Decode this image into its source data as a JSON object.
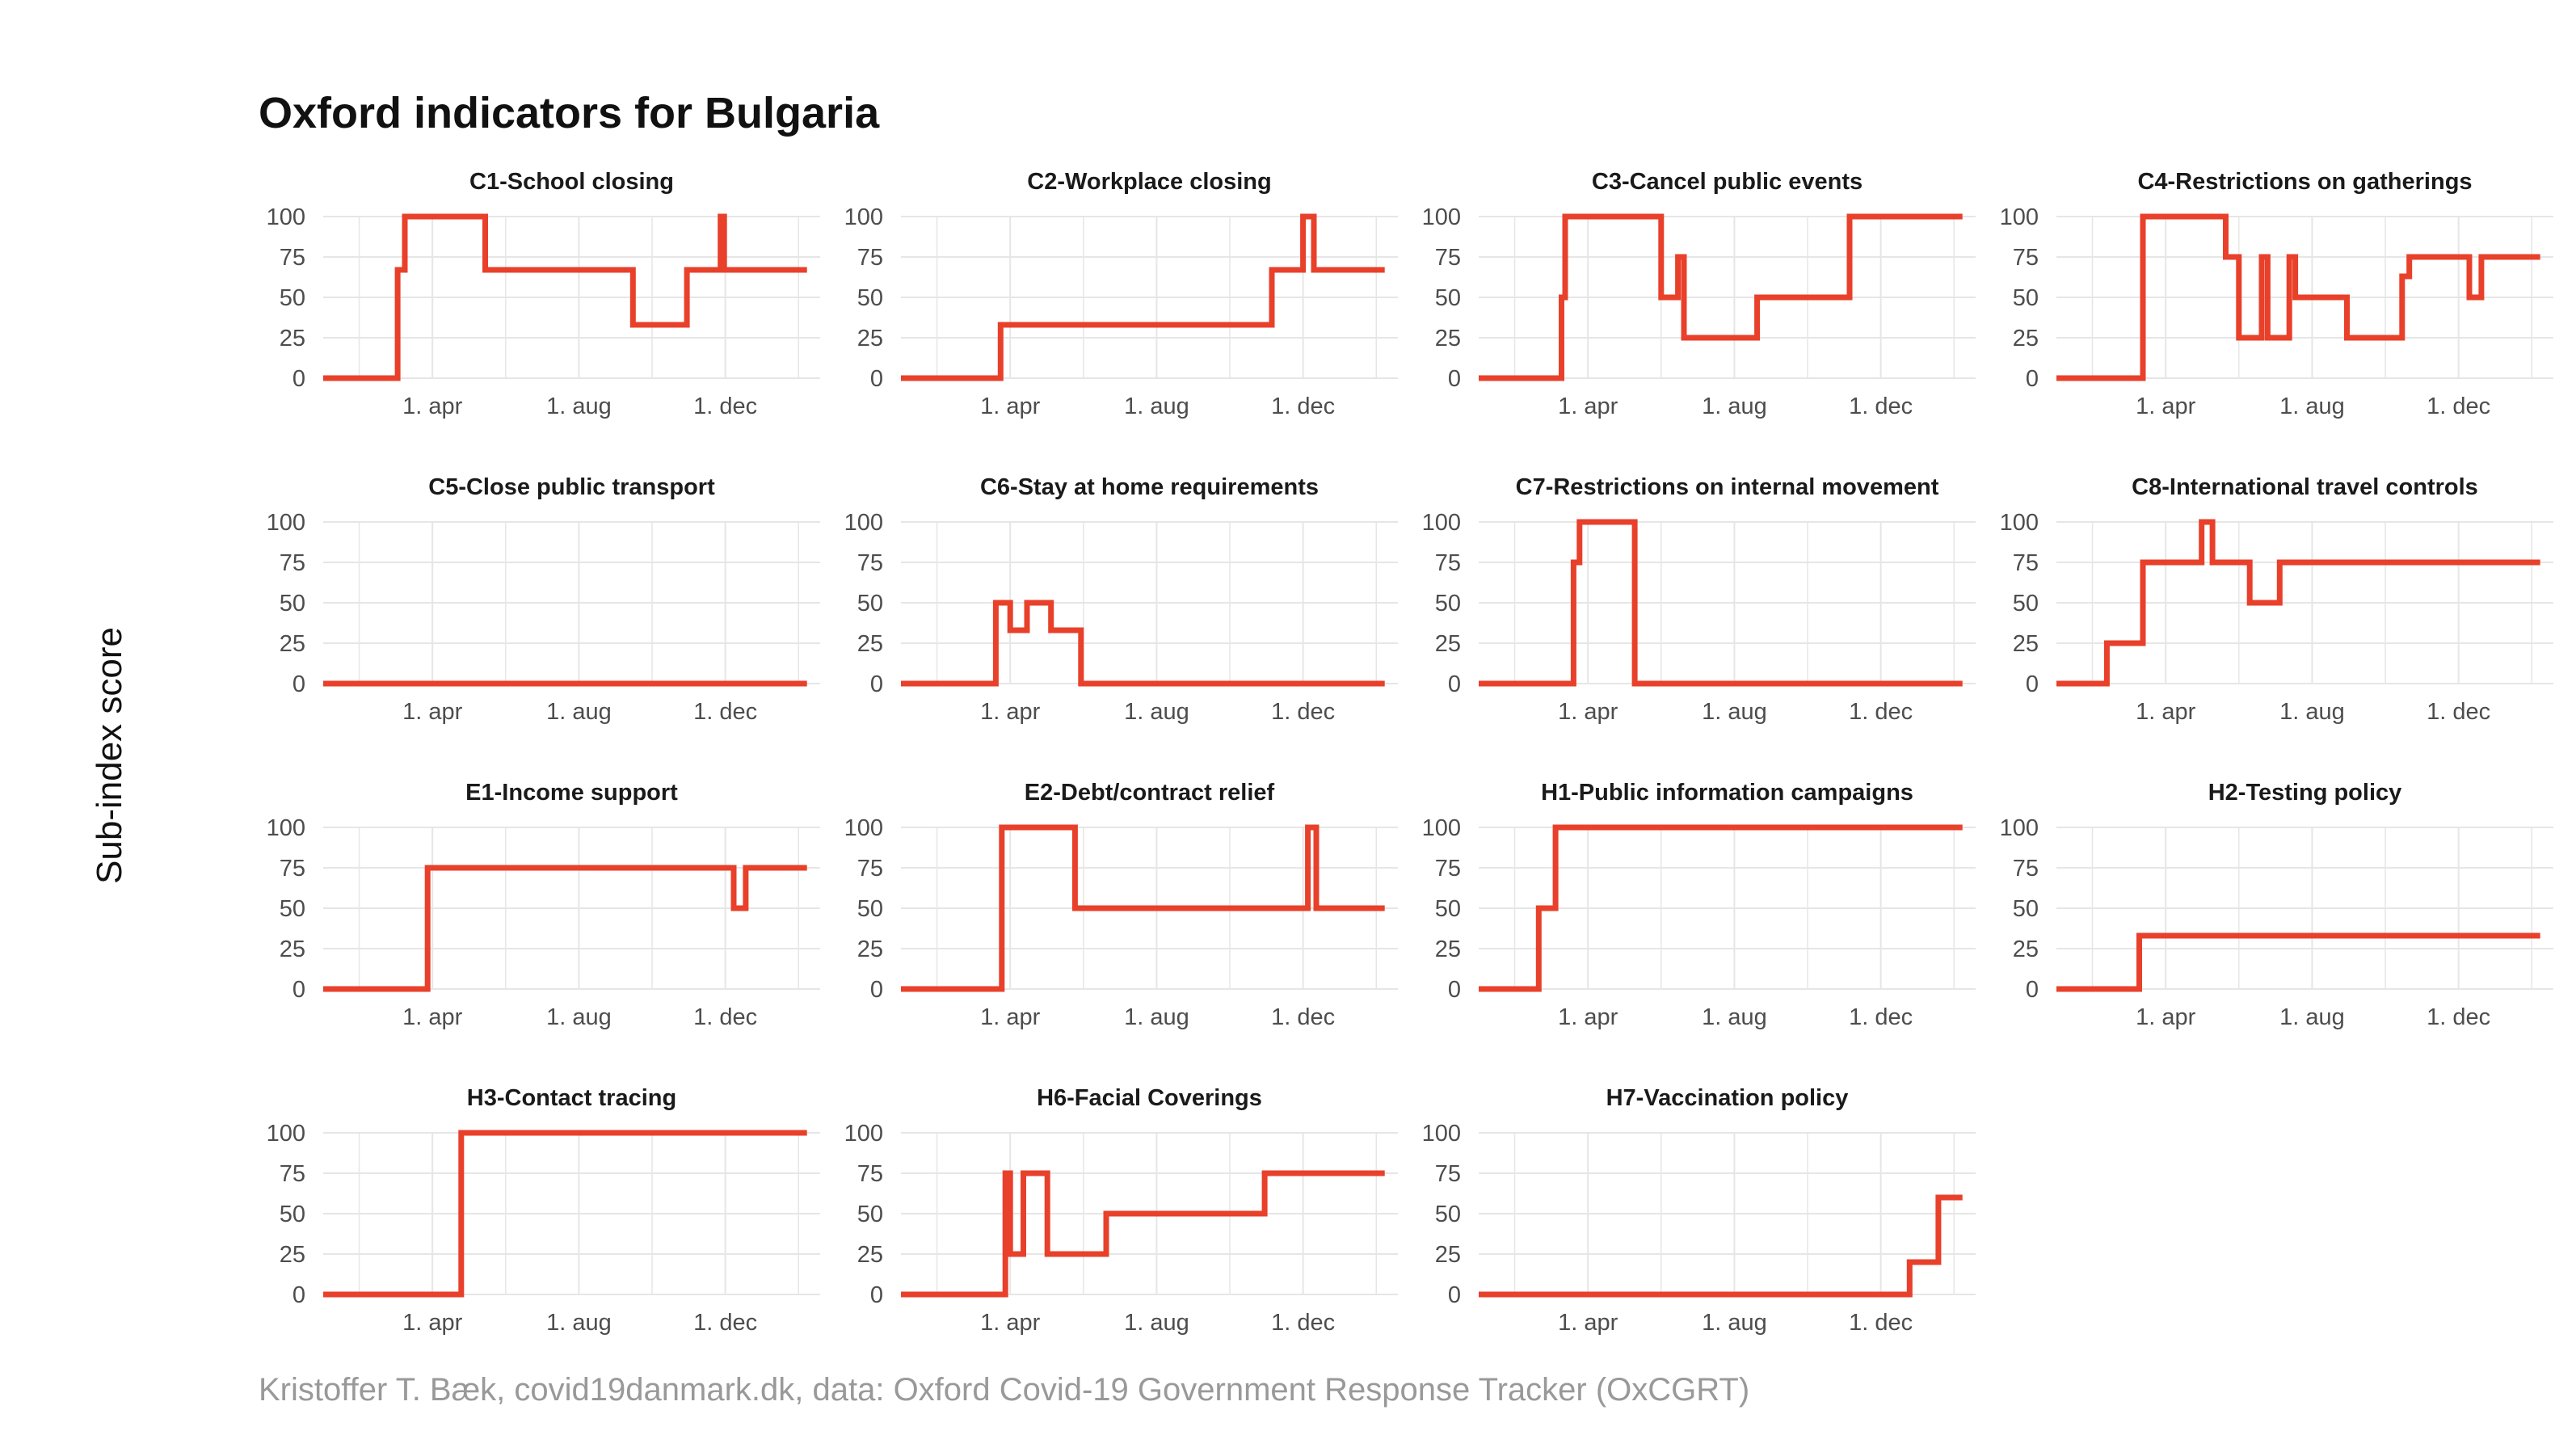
{
  "title": "Oxford indicators for Bulgaria",
  "ylabel": "Sub-index score",
  "caption": "Kristoffer T. Bæk, covid19danmark.dk, data: Oxford Covid-19 Government Response Tracker (OxCGRT)",
  "colors": {
    "line": "#e8402a",
    "grid": "#e6e6e6"
  },
  "chart_data": {
    "type": "line",
    "x_unit": "date",
    "xlim": [
      "2020-01-01",
      "2021-02-18"
    ],
    "ylim": [
      0,
      100
    ],
    "yticks": [
      0,
      25,
      50,
      75,
      100
    ],
    "xticks": [
      {
        "date": "2020-04-01",
        "label": "1. apr"
      },
      {
        "date": "2020-08-01",
        "label": "1. aug"
      },
      {
        "date": "2020-12-01",
        "label": "1. dec"
      }
    ],
    "grid": true,
    "facets": [
      {
        "name": "C1-School closing",
        "steps": [
          [
            "2020-01-01",
            0
          ],
          [
            "2020-03-03",
            67
          ],
          [
            "2020-03-09",
            100
          ],
          [
            "2020-05-15",
            67
          ],
          [
            "2020-09-15",
            33
          ],
          [
            "2020-10-30",
            67
          ],
          [
            "2020-11-27",
            100
          ],
          [
            "2020-11-30",
            67
          ],
          [
            "2021-02-07",
            67
          ]
        ]
      },
      {
        "name": "C2-Workplace closing",
        "steps": [
          [
            "2020-01-01",
            0
          ],
          [
            "2020-03-24",
            33
          ],
          [
            "2020-11-05",
            67
          ],
          [
            "2020-12-01",
            100
          ],
          [
            "2020-12-10",
            67
          ],
          [
            "2021-02-07",
            67
          ]
        ]
      },
      {
        "name": "C3-Cancel public events",
        "steps": [
          [
            "2020-01-01",
            0
          ],
          [
            "2020-03-10",
            50
          ],
          [
            "2020-03-13",
            100
          ],
          [
            "2020-06-01",
            50
          ],
          [
            "2020-06-15",
            75
          ],
          [
            "2020-06-20",
            25
          ],
          [
            "2020-08-20",
            50
          ],
          [
            "2020-11-05",
            100
          ],
          [
            "2021-02-07",
            100
          ]
        ]
      },
      {
        "name": "C4-Restrictions on gatherings",
        "steps": [
          [
            "2020-01-01",
            0
          ],
          [
            "2020-03-13",
            100
          ],
          [
            "2020-05-21",
            75
          ],
          [
            "2020-06-01",
            25
          ],
          [
            "2020-06-20",
            75
          ],
          [
            "2020-06-25",
            25
          ],
          [
            "2020-07-13",
            75
          ],
          [
            "2020-07-18",
            50
          ],
          [
            "2020-08-30",
            25
          ],
          [
            "2020-10-15",
            63
          ],
          [
            "2020-10-21",
            75
          ],
          [
            "2020-12-10",
            50
          ],
          [
            "2020-12-20",
            75
          ],
          [
            "2021-02-07",
            75
          ]
        ]
      },
      {
        "name": "C5-Close public transport",
        "steps": [
          [
            "2020-01-01",
            0
          ],
          [
            "2021-02-07",
            0
          ]
        ]
      },
      {
        "name": "C6-Stay at home requirements",
        "steps": [
          [
            "2020-01-01",
            0
          ],
          [
            "2020-03-20",
            50
          ],
          [
            "2020-04-01",
            33
          ],
          [
            "2020-04-15",
            50
          ],
          [
            "2020-05-05",
            33
          ],
          [
            "2020-05-30",
            0
          ],
          [
            "2021-02-07",
            0
          ]
        ]
      },
      {
        "name": "C7-Restrictions on internal movement",
        "steps": [
          [
            "2020-01-01",
            0
          ],
          [
            "2020-03-20",
            75
          ],
          [
            "2020-03-25",
            100
          ],
          [
            "2020-05-10",
            0
          ],
          [
            "2021-02-07",
            0
          ]
        ]
      },
      {
        "name": "C8-International travel controls",
        "steps": [
          [
            "2020-01-01",
            0
          ],
          [
            "2020-02-12",
            25
          ],
          [
            "2020-03-13",
            75
          ],
          [
            "2020-05-01",
            100
          ],
          [
            "2020-05-10",
            75
          ],
          [
            "2020-06-10",
            50
          ],
          [
            "2020-07-05",
            75
          ],
          [
            "2021-02-07",
            75
          ]
        ]
      },
      {
        "name": "E1-Income support",
        "steps": [
          [
            "2020-01-01",
            0
          ],
          [
            "2020-03-28",
            75
          ],
          [
            "2020-12-08",
            50
          ],
          [
            "2020-12-18",
            75
          ],
          [
            "2021-02-07",
            75
          ]
        ]
      },
      {
        "name": "E2-Debt/contract relief",
        "steps": [
          [
            "2020-01-01",
            0
          ],
          [
            "2020-03-25",
            100
          ],
          [
            "2020-05-25",
            50
          ],
          [
            "2020-12-05",
            100
          ],
          [
            "2020-12-12",
            50
          ],
          [
            "2021-02-07",
            50
          ]
        ]
      },
      {
        "name": "H1-Public information campaigns",
        "steps": [
          [
            "2020-01-01",
            0
          ],
          [
            "2020-02-20",
            50
          ],
          [
            "2020-03-05",
            100
          ],
          [
            "2021-02-07",
            100
          ]
        ]
      },
      {
        "name": "H2-Testing policy",
        "steps": [
          [
            "2020-01-01",
            0
          ],
          [
            "2020-03-10",
            33
          ],
          [
            "2021-02-07",
            33
          ]
        ]
      },
      {
        "name": "H3-Contact tracing",
        "steps": [
          [
            "2020-01-01",
            0
          ],
          [
            "2020-04-25",
            100
          ],
          [
            "2021-02-07",
            100
          ]
        ]
      },
      {
        "name": "H6-Facial Coverings",
        "steps": [
          [
            "2020-01-01",
            0
          ],
          [
            "2020-03-28",
            75
          ],
          [
            "2020-04-01",
            25
          ],
          [
            "2020-04-12",
            75
          ],
          [
            "2020-05-02",
            25
          ],
          [
            "2020-06-20",
            50
          ],
          [
            "2020-10-30",
            75
          ],
          [
            "2021-02-07",
            75
          ]
        ]
      },
      {
        "name": "H7-Vaccination policy",
        "steps": [
          [
            "2020-01-01",
            0
          ],
          [
            "2020-12-25",
            20
          ],
          [
            "2021-01-18",
            60
          ],
          [
            "2021-02-07",
            60
          ]
        ]
      }
    ]
  }
}
